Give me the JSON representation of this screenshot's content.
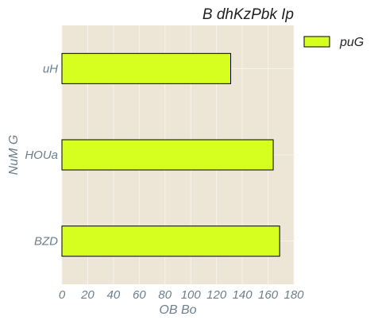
{
  "chart_data": {
    "type": "bar",
    "orientation": "horizontal",
    "title": "B dhKzPbk Ip",
    "xlabel": "OB Bo",
    "ylabel": "NuM G",
    "categories": [
      "BZD",
      "HOUa",
      "uH"
    ],
    "series": [
      {
        "name": "puG",
        "values": [
          169,
          164,
          131
        ]
      }
    ],
    "xlim": [
      0,
      180
    ],
    "xticks": [
      "0",
      "20",
      "40",
      "60",
      "80",
      "100",
      "120",
      "140",
      "160",
      "180"
    ],
    "grid": true,
    "legend_position": "outside-top-right",
    "colors": {
      "plot_background": "#ede6d7",
      "bar_fill": "#d6ff1f",
      "bar_edge": "#000000",
      "grid": "#f7f3ea",
      "tick_text": "#6b7f8c"
    }
  }
}
